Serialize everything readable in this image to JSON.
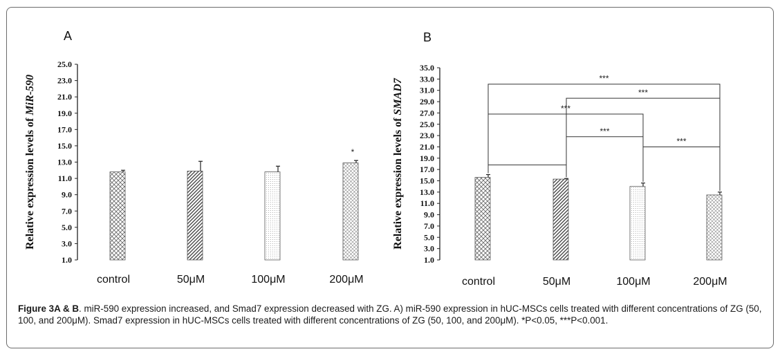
{
  "chart_data": [
    {
      "type": "bar",
      "panel_label": "A",
      "categories": [
        "control",
        "50μM",
        "100μM",
        "200μM"
      ],
      "values": [
        11.8,
        11.9,
        11.8,
        12.9
      ],
      "errors": [
        0.2,
        1.2,
        0.7,
        0.3
      ],
      "patterns": [
        "hatch-cross",
        "hatch-diag",
        "dots-fine",
        "dots-cross"
      ],
      "ylabel_prefix": "Relative expression levels of ",
      "ylabel_gene": "MiR-590",
      "ylim": [
        1.0,
        25.0
      ],
      "yticks": [
        "1.0",
        "3.0",
        "5.0",
        "7.0",
        "9.0",
        "11.0",
        "13.0",
        "15.0",
        "17.0",
        "19.0",
        "21.0",
        "23.0",
        "25.0"
      ],
      "annotations": [
        {
          "category": "200μM",
          "text": "*"
        }
      ]
    },
    {
      "type": "bar",
      "panel_label": "B",
      "categories": [
        "control",
        "50μM",
        "100μM",
        "200μM"
      ],
      "values": [
        15.6,
        15.3,
        14.0,
        12.5
      ],
      "errors": [
        0.5,
        0.1,
        0.6,
        0.5
      ],
      "patterns": [
        "hatch-cross",
        "hatch-diag",
        "dots-fine",
        "dots-cross"
      ],
      "ylabel_prefix": "Relative expression levels of ",
      "ylabel_gene": "SMAD7",
      "ylim": [
        1.0,
        35.0
      ],
      "yticks": [
        "1.0",
        "3.0",
        "5.0",
        "7.0",
        "9.0",
        "11.0",
        "13.0",
        "15.0",
        "17.0",
        "19.0",
        "21.0",
        "23.0",
        "25.0",
        "27.0",
        "29.0",
        "31.0",
        "33.0",
        "35.0"
      ],
      "brackets": [
        {
          "from": "control",
          "to": "50μM",
          "level": 17.8,
          "text": ""
        },
        {
          "from": "50μM",
          "to": "100μM",
          "level": 22.8,
          "text": "***"
        },
        {
          "from": "100μM",
          "to": "200μM",
          "level": 21.0,
          "text": "***"
        },
        {
          "from": "control",
          "to": "100μM",
          "level": 26.8,
          "text": "***"
        },
        {
          "from": "50μM",
          "to": "200μM",
          "level": 29.6,
          "text": "***"
        },
        {
          "from": "control",
          "to": "200μM",
          "level": 32.1,
          "text": "***"
        }
      ]
    }
  ],
  "caption": {
    "lead": "Figure 3A & B",
    "text": ". miR-590 expression increased, and Smad7 expression decreased with ZG. A) miR-590 expression in hUC-MSCs cells treated with different concentrations of ZG (50, 100, and 200μM). Smad7 expression in hUC-MSCs cells treated with different concentrations of ZG (50, 100, and 200μM). *P<0.05, ***P<0.001."
  }
}
